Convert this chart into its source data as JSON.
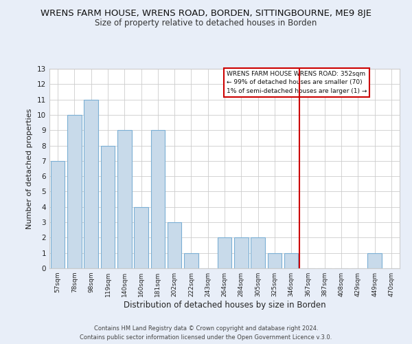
{
  "title": "WRENS FARM HOUSE, WRENS ROAD, BORDEN, SITTINGBOURNE, ME9 8JE",
  "subtitle": "Size of property relative to detached houses in Borden",
  "xlabel": "Distribution of detached houses by size in Borden",
  "ylabel": "Number of detached properties",
  "bar_labels": [
    "57sqm",
    "78sqm",
    "98sqm",
    "119sqm",
    "140sqm",
    "160sqm",
    "181sqm",
    "202sqm",
    "222sqm",
    "243sqm",
    "264sqm",
    "284sqm",
    "305sqm",
    "325sqm",
    "346sqm",
    "367sqm",
    "387sqm",
    "408sqm",
    "429sqm",
    "449sqm",
    "470sqm"
  ],
  "bar_values": [
    7,
    10,
    11,
    8,
    9,
    4,
    9,
    3,
    1,
    0,
    2,
    2,
    2,
    1,
    1,
    0,
    0,
    0,
    0,
    1,
    0
  ],
  "bar_color": "#c8daea",
  "bar_edge_color": "#7bafd4",
  "grid_color": "#cccccc",
  "vline_x": 14.5,
  "vline_color": "#cc0000",
  "legend_title": "WRENS FARM HOUSE WRENS ROAD: 352sqm",
  "legend_line1": "← 99% of detached houses are smaller (70)",
  "legend_line2": "1% of semi-detached houses are larger (1) →",
  "legend_box_color": "#cc0000",
  "footer1": "Contains HM Land Registry data © Crown copyright and database right 2024.",
  "footer2": "Contains public sector information licensed under the Open Government Licence v.3.0.",
  "ylim": [
    0,
    13
  ],
  "yticks": [
    0,
    1,
    2,
    3,
    4,
    5,
    6,
    7,
    8,
    9,
    10,
    11,
    12,
    13
  ],
  "plot_bg": "#ffffff",
  "fig_bg": "#e8eef8",
  "title_fontsize": 9.5,
  "subtitle_fontsize": 8.5
}
